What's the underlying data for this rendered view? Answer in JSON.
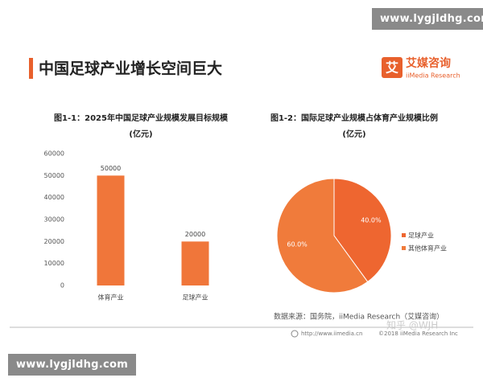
{
  "header": {
    "title": "中国足球产业增长空间巨大",
    "logo_mark": "艾",
    "logo_name": "艾媒咨询",
    "logo_sub": "iiMedia Research",
    "watermark_top": "www.lygjldhg.com"
  },
  "chart_data": [
    {
      "type": "bar",
      "title": "图1-1：2025年中国足球产业规模发展目标规模",
      "subtitle": "(亿元)",
      "categories": [
        "体育产业",
        "足球产业"
      ],
      "values": [
        50000,
        20000
      ],
      "color": "#f0763a",
      "ylim": [
        0,
        60000
      ],
      "yticks": [
        0,
        10000,
        20000,
        30000,
        40000,
        50000,
        60000
      ],
      "grid": false
    },
    {
      "type": "pie",
      "title": "图1-2：国际足球产业规模占体育产业规模比例",
      "subtitle": "(亿元)",
      "categories": [
        "足球产业",
        "其他体育产业"
      ],
      "values": [
        40,
        60
      ],
      "value_labels": [
        "40.0%",
        "60.0%"
      ],
      "colors": [
        "#ee6630",
        "#f07b3b"
      ],
      "legend": "right"
    }
  ],
  "footer": {
    "source": "数据来源：国务院，iiMedia Research（艾媒咨询）",
    "url": "http://www.iimedia.cn",
    "copyright": "©2018 iiMedia Research Inc",
    "zhihu": "知乎 @WJH",
    "watermark_bottom": "www.lygjldhg.com"
  }
}
